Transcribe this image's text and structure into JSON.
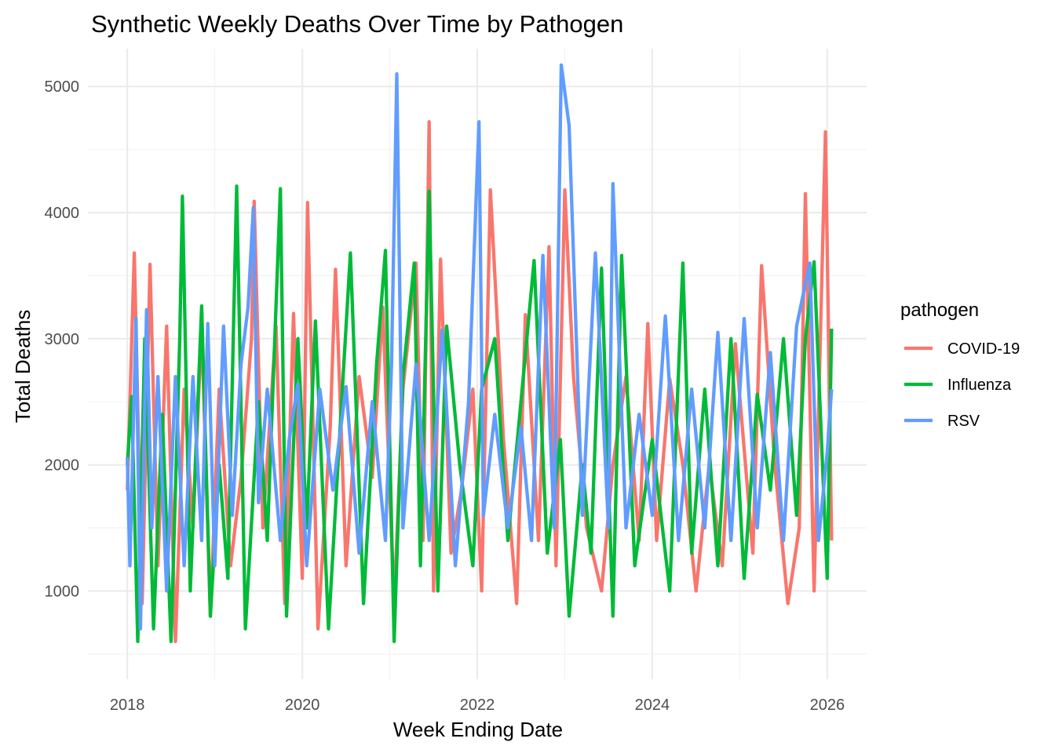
{
  "chart_data": {
    "type": "line",
    "title": "Synthetic Weekly Deaths Over Time by Pathogen",
    "xlabel": "Week Ending Date",
    "ylabel": "Total Deaths",
    "xlim": [
      2017.55,
      2026.45
    ],
    "ylim": [
      300,
      5300
    ],
    "x_ticks": [
      2018,
      2020,
      2022,
      2024,
      2026
    ],
    "x_tick_labels": [
      "2018",
      "2020",
      "2022",
      "2024",
      "2026"
    ],
    "y_ticks": [
      1000,
      2000,
      3000,
      4000,
      5000
    ],
    "y_tick_labels": [
      "1000",
      "2000",
      "3000",
      "4000",
      "5000"
    ],
    "grid": true,
    "legend": {
      "title": "pathogen",
      "position": "right"
    },
    "series": [
      {
        "name": "COVID-19",
        "color": "#F8766D",
        "x": [
          2018.0,
          2018.08,
          2018.17,
          2018.26,
          2018.35,
          2018.45,
          2018.55,
          2018.65,
          2018.75,
          2018.85,
          2018.95,
          2019.05,
          2019.18,
          2019.3,
          2019.42,
          2019.45,
          2019.55,
          2019.7,
          2019.8,
          2019.9,
          2020.0,
          2020.06,
          2020.18,
          2020.32,
          2020.38,
          2020.5,
          2020.65,
          2020.8,
          2020.92,
          2021.05,
          2021.15,
          2021.3,
          2021.38,
          2021.45,
          2021.5,
          2021.58,
          2021.7,
          2021.82,
          2021.95,
          2022.05,
          2022.15,
          2022.3,
          2022.45,
          2022.55,
          2022.7,
          2022.82,
          2022.9,
          2023.0,
          2023.1,
          2023.25,
          2023.42,
          2023.55,
          2023.7,
          2023.85,
          2023.95,
          2024.05,
          2024.2,
          2024.35,
          2024.5,
          2024.65,
          2024.8,
          2024.95,
          2025.15,
          2025.25,
          2025.4,
          2025.55,
          2025.68,
          2025.75,
          2025.85,
          2025.98,
          2026.05
        ],
        "values": [
          1800,
          3680,
          900,
          3590,
          1200,
          3100,
          600,
          2600,
          1500,
          3100,
          800,
          2600,
          1200,
          1900,
          3000,
          4090,
          1500,
          3100,
          900,
          3200,
          1100,
          4080,
          700,
          2300,
          3550,
          1200,
          2700,
          1900,
          3250,
          900,
          2600,
          3600,
          1400,
          4720,
          1000,
          3630,
          1300,
          1800,
          2600,
          1000,
          4180,
          2200,
          900,
          3190,
          1400,
          3730,
          1200,
          4180,
          2700,
          1500,
          1000,
          2000,
          2700,
          1400,
          3120,
          1400,
          2680,
          2000,
          1000,
          2000,
          1200,
          2960,
          1300,
          3580,
          2000,
          900,
          1500,
          4150,
          1000,
          4640,
          1400
        ]
      },
      {
        "name": "Influenza",
        "color": "#00BA38",
        "x": [
          2018.0,
          2018.05,
          2018.12,
          2018.2,
          2018.3,
          2018.4,
          2018.5,
          2018.6,
          2018.63,
          2018.72,
          2018.85,
          2018.95,
          2019.05,
          2019.15,
          2019.25,
          2019.35,
          2019.5,
          2019.6,
          2019.75,
          2019.82,
          2019.95,
          2020.05,
          2020.15,
          2020.3,
          2020.45,
          2020.55,
          2020.7,
          2020.85,
          2020.95,
          2021.05,
          2021.15,
          2021.28,
          2021.35,
          2021.45,
          2021.55,
          2021.65,
          2021.8,
          2021.95,
          2022.05,
          2022.2,
          2022.35,
          2022.5,
          2022.65,
          2022.8,
          2022.95,
          2023.05,
          2023.2,
          2023.3,
          2023.42,
          2023.55,
          2023.65,
          2023.8,
          2024.0,
          2024.2,
          2024.35,
          2024.45,
          2024.6,
          2024.75,
          2024.9,
          2025.05,
          2025.2,
          2025.35,
          2025.5,
          2025.65,
          2025.75,
          2025.85,
          2026.0,
          2026.05
        ],
        "values": [
          2000,
          2540,
          600,
          3000,
          700,
          2400,
          600,
          3000,
          4130,
          1000,
          3260,
          800,
          2000,
          1100,
          4210,
          700,
          2500,
          1400,
          4190,
          800,
          3000,
          1500,
          3140,
          700,
          2500,
          3680,
          900,
          2800,
          3700,
          600,
          2700,
          3600,
          1200,
          4170,
          1000,
          3100,
          2000,
          1200,
          2600,
          3000,
          1400,
          2500,
          3620,
          1300,
          2200,
          800,
          2000,
          1300,
          3560,
          800,
          3660,
          1200,
          2200,
          1000,
          3600,
          1300,
          2600,
          1200,
          3000,
          1100,
          2560,
          1800,
          3000,
          1600,
          3000,
          3610,
          1100,
          3080
        ]
      },
      {
        "name": "RSV",
        "color": "#619CFF",
        "x": [
          2018.0,
          2018.03,
          2018.1,
          2018.15,
          2018.22,
          2018.28,
          2018.35,
          2018.45,
          2018.55,
          2018.65,
          2018.75,
          2018.85,
          2018.92,
          2019.0,
          2019.1,
          2019.2,
          2019.3,
          2019.38,
          2019.44,
          2019.5,
          2019.6,
          2019.75,
          2019.85,
          2019.95,
          2020.05,
          2020.2,
          2020.35,
          2020.5,
          2020.65,
          2020.8,
          2020.95,
          2021.02,
          2021.08,
          2021.15,
          2021.3,
          2021.45,
          2021.6,
          2021.75,
          2021.9,
          2022.02,
          2022.07,
          2022.2,
          2022.35,
          2022.5,
          2022.62,
          2022.75,
          2022.88,
          2022.96,
          2023.05,
          2023.2,
          2023.35,
          2023.5,
          2023.55,
          2023.7,
          2023.85,
          2024.0,
          2024.15,
          2024.3,
          2024.45,
          2024.6,
          2024.75,
          2024.9,
          2025.05,
          2025.2,
          2025.35,
          2025.5,
          2025.65,
          2025.8,
          2025.9,
          2026.0,
          2026.05
        ],
        "values": [
          2060,
          1200,
          3160,
          700,
          3230,
          1500,
          2700,
          1000,
          2700,
          1200,
          2700,
          1400,
          3120,
          1200,
          3100,
          1600,
          2800,
          3250,
          4040,
          1700,
          2600,
          1400,
          2200,
          2640,
          1200,
          2600,
          1800,
          2620,
          1300,
          2500,
          1400,
          2800,
          5100,
          1500,
          2800,
          1400,
          3070,
          1200,
          2500,
          4720,
          1600,
          2400,
          1500,
          2300,
          1400,
          3660,
          1500,
          5170,
          4690,
          1600,
          3680,
          1500,
          4230,
          1500,
          2400,
          1600,
          3180,
          1400,
          2600,
          1500,
          3050,
          1400,
          3160,
          1500,
          2890,
          1400,
          3100,
          3600,
          1400,
          2100,
          2600
        ]
      }
    ]
  }
}
